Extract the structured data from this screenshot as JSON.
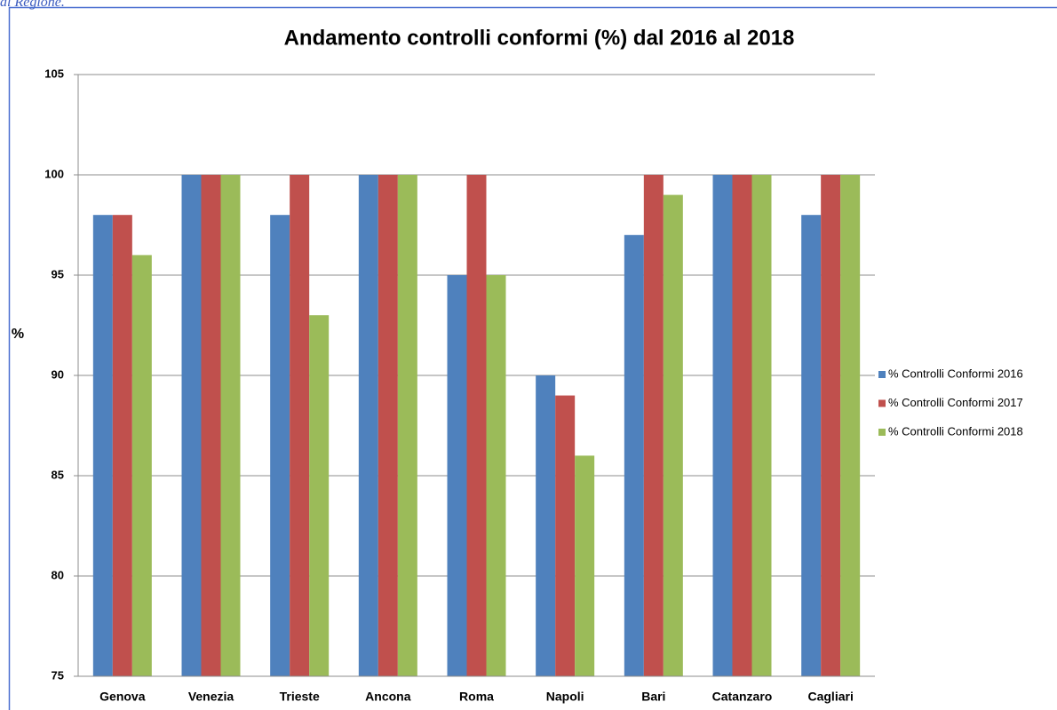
{
  "header_text": "ai Regione.",
  "chart_data": {
    "type": "bar",
    "title": "Andamento controlli conformi (%) dal 2016 al 2018",
    "y_label": "%",
    "categories": [
      "Genova",
      "Venezia",
      "Trieste",
      "Ancona",
      "Roma",
      "Napoli",
      "Bari",
      "Catanzaro",
      "Cagliari"
    ],
    "series": [
      {
        "name": "% Controlli Conformi 2016",
        "color": "#4f81bd",
        "values": [
          98,
          100,
          98,
          100,
          95,
          90,
          97,
          100,
          98
        ]
      },
      {
        "name": "% Controlli Conformi 2017",
        "color": "#c0504d",
        "values": [
          98,
          100,
          100,
          100,
          100,
          89,
          100,
          100,
          100
        ]
      },
      {
        "name": "% Controlli Conformi 2018",
        "color": "#9bbb59",
        "values": [
          96,
          100,
          93,
          100,
          95,
          86,
          99,
          100,
          100
        ]
      }
    ],
    "ylim": [
      75,
      105
    ],
    "yticks": [
      75,
      80,
      85,
      90,
      95,
      100,
      105
    ],
    "grid": true,
    "legend": "right"
  }
}
